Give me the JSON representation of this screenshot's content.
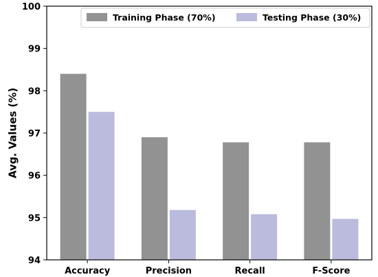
{
  "chart_data": {
    "type": "bar",
    "title": "",
    "xlabel": "",
    "ylabel": "Avg. Values (%)",
    "ylim": [
      94,
      100
    ],
    "yticks": [
      94,
      95,
      96,
      97,
      98,
      99,
      100
    ],
    "categories": [
      "Accuracy",
      "Precision",
      "Recall",
      "F-Score"
    ],
    "series": [
      {
        "name": "Training Phase (70%)",
        "color": "#929292",
        "values": [
          98.4,
          96.9,
          96.78,
          96.78
        ]
      },
      {
        "name": "Testing Phase (30%)",
        "color": "#bbbbdd",
        "values": [
          97.5,
          95.18,
          95.08,
          94.97
        ]
      }
    ],
    "legend_position": "top-right",
    "grid": false
  }
}
